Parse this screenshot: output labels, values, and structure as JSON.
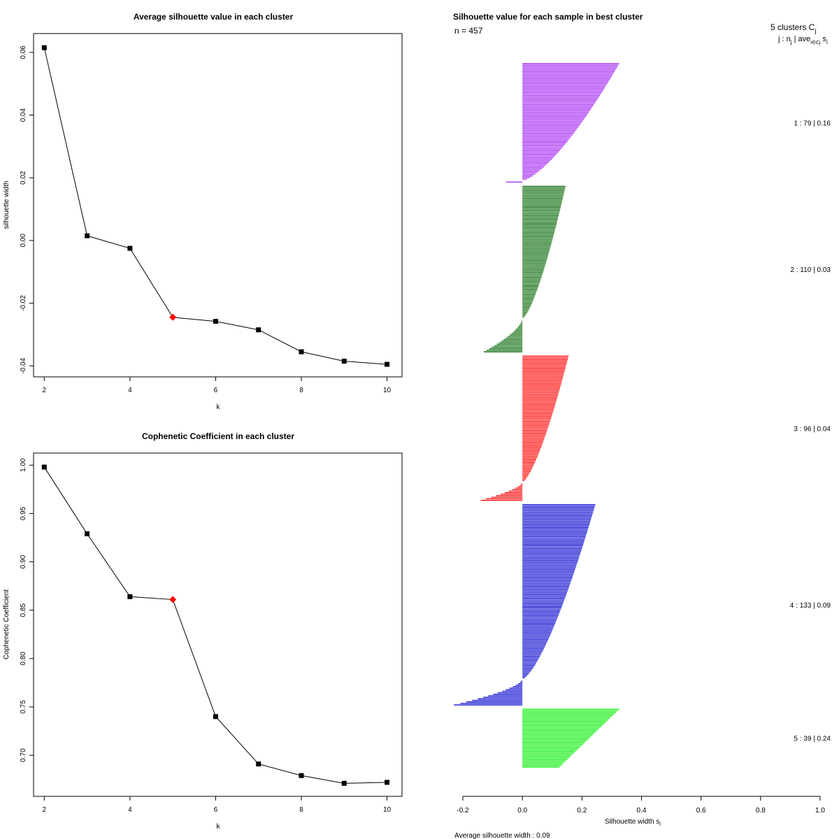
{
  "chart_data": [
    {
      "type": "line",
      "title": "Average silhouette value in each cluster",
      "xlabel": "k",
      "ylabel": "silhouette width",
      "x": [
        2,
        3,
        4,
        5,
        6,
        7,
        8,
        9,
        10
      ],
      "y": [
        0.0615,
        0.0015,
        -0.0025,
        -0.0245,
        -0.0258,
        -0.0285,
        -0.0355,
        -0.0385,
        -0.0395
      ],
      "highlight_k": 5,
      "highlight_color": "#ff0000",
      "xlim": [
        1.75,
        10.35
      ],
      "ylim": [
        -0.0435,
        0.066
      ],
      "xticks": [
        2,
        4,
        6,
        8,
        10
      ],
      "xtick_labels": [
        "2",
        "4",
        "6",
        "8",
        "10"
      ],
      "yticks": [
        -0.04,
        -0.02,
        0.0,
        0.02,
        0.04,
        0.06
      ],
      "ytick_labels": [
        "-0.04",
        "-0.02",
        "0.00",
        "0.02",
        "0.04",
        "0.06"
      ]
    },
    {
      "type": "line",
      "title": "Cophenetic Coefficient in each cluster",
      "xlabel": "k",
      "ylabel": "Cophenetic Coefficient",
      "x": [
        2,
        3,
        4,
        5,
        6,
        7,
        8,
        9,
        10
      ],
      "y": [
        0.998,
        0.929,
        0.864,
        0.861,
        0.74,
        0.691,
        0.679,
        0.671,
        0.672
      ],
      "highlight_k": 5,
      "highlight_color": "#ff0000",
      "xlim": [
        1.75,
        10.35
      ],
      "ylim": [
        0.6575,
        1.0125
      ],
      "xticks": [
        2,
        4,
        6,
        8,
        10
      ],
      "xtick_labels": [
        "2",
        "4",
        "6",
        "8",
        "10"
      ],
      "yticks": [
        0.7,
        0.75,
        0.8,
        0.85,
        0.9,
        0.95,
        1.0
      ],
      "ytick_labels": [
        "0.70",
        "0.75",
        "0.80",
        "0.85",
        "0.90",
        "0.95",
        "1.00"
      ]
    },
    {
      "type": "bar",
      "orientation": "horizontal",
      "title": "Silhouette value for each sample in best cluster",
      "n_label": "n = 457",
      "header_line1": "5  clusters  C",
      "header_line1_sub": "j",
      "header_line2": "j :  n",
      "header_line2_sub": "j",
      "header_line2_mid": " | ave",
      "header_line2_sub2": "i∈Cj",
      "header_line2_end": " s",
      "header_line2_end_sub": "i",
      "xlabel": "Silhouette width s",
      "xlabel_sub": "i",
      "footer": "Average silhouette width :  0.09",
      "xlim": [
        -0.2,
        1.0
      ],
      "xticks": [
        -0.2,
        0.0,
        0.2,
        0.4,
        0.6,
        0.8,
        1.0
      ],
      "xtick_labels": [
        "-0.2",
        "0.0",
        "0.2",
        "0.4",
        "0.6",
        "0.8",
        "1.0"
      ],
      "clusters": [
        {
          "id": 1,
          "n": 79,
          "avg": 0.16,
          "color": "#a020f0",
          "label": "1 :  79  |  0.16",
          "max": 0.325,
          "min": -0.055,
          "neg_count": 1
        },
        {
          "id": 2,
          "n": 110,
          "avg": 0.03,
          "color": "#006400",
          "label": "2 :  110  |  0.03",
          "max": 0.145,
          "min": -0.13,
          "neg_count": 22
        },
        {
          "id": 3,
          "n": 96,
          "avg": 0.04,
          "color": "#ff0000",
          "label": "3 :  96  |  0.04",
          "max": 0.155,
          "min": -0.14,
          "neg_count": 12
        },
        {
          "id": 4,
          "n": 133,
          "avg": 0.09,
          "color": "#0000cd",
          "label": "4 :  133  |  0.09",
          "max": 0.245,
          "min": -0.23,
          "neg_count": 17
        },
        {
          "id": 5,
          "n": 39,
          "avg": 0.24,
          "color": "#00ee00",
          "label": "5 :  39  |  0.24",
          "max": 0.325,
          "min": 0.125,
          "neg_count": 0
        }
      ]
    }
  ]
}
